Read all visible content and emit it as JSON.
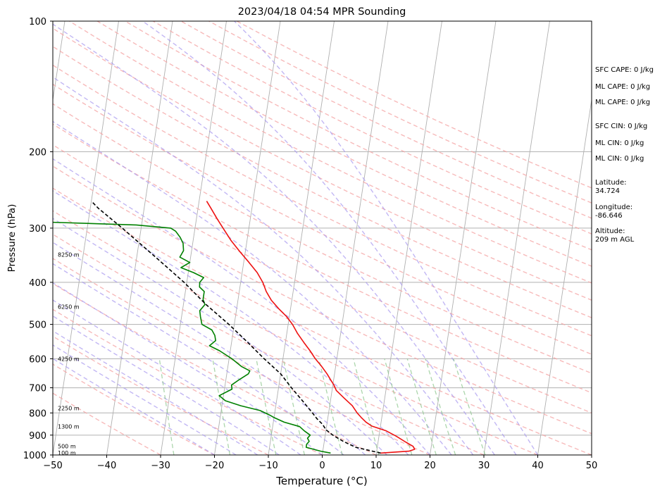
{
  "chart_data": {
    "type": "line",
    "title": "2023/04/18 04:54 MPR Sounding",
    "xlabel": "Temperature (°C)",
    "ylabel": "Pressure (hPa)",
    "xlim": [
      -50,
      50
    ],
    "ylim": [
      1000,
      100
    ],
    "y_scale": "log",
    "x_ticks": [
      "−50",
      "−40",
      "−30",
      "−20",
      "−10",
      "0",
      "10",
      "20",
      "30",
      "40",
      "50"
    ],
    "y_ticks": [
      1000,
      900,
      800,
      700,
      600,
      500,
      400,
      300,
      200,
      100
    ],
    "grid": true,
    "skew": true,
    "series": [
      {
        "color": "#ee1111",
        "points": [
          [
            990,
            10.8
          ],
          [
            980,
            16.0
          ],
          [
            970,
            17.0
          ],
          [
            955,
            16.6
          ],
          [
            935,
            15.2
          ],
          [
            905,
            13.2
          ],
          [
            880,
            11.2
          ],
          [
            858,
            8.4
          ],
          [
            840,
            7.2
          ],
          [
            820,
            6.2
          ],
          [
            800,
            5.3
          ],
          [
            770,
            4.2
          ],
          [
            740,
            2.5
          ],
          [
            710,
            0.8
          ],
          [
            690,
            0.2
          ],
          [
            670,
            -0.6
          ],
          [
            650,
            -1.4
          ],
          [
            625,
            -2.6
          ],
          [
            600,
            -4.0
          ],
          [
            575,
            -5.2
          ],
          [
            550,
            -6.6
          ],
          [
            525,
            -8.0
          ],
          [
            500,
            -9.2
          ],
          [
            480,
            -10.5
          ],
          [
            460,
            -12.2
          ],
          [
            440,
            -13.8
          ],
          [
            420,
            -15.0
          ],
          [
            400,
            -15.9
          ],
          [
            380,
            -17.2
          ],
          [
            360,
            -19.0
          ],
          [
            340,
            -21.0
          ],
          [
            320,
            -23.0
          ],
          [
            300,
            -24.8
          ],
          [
            285,
            -26.2
          ],
          [
            270,
            -27.6
          ],
          [
            260,
            -28.6
          ]
        ]
      },
      {
        "color": "#008000",
        "points": [
          [
            990,
            1.5
          ],
          [
            980,
            -0.4
          ],
          [
            970,
            -1.8
          ],
          [
            960,
            -3.2
          ],
          [
            945,
            -3.2
          ],
          [
            930,
            -2.8
          ],
          [
            915,
            -3.2
          ],
          [
            900,
            -2.8
          ],
          [
            880,
            -4.0
          ],
          [
            860,
            -5.0
          ],
          [
            840,
            -8.0
          ],
          [
            820,
            -10.0
          ],
          [
            810,
            -10.8
          ],
          [
            790,
            -12.8
          ],
          [
            770,
            -16.5
          ],
          [
            750,
            -19.5
          ],
          [
            730,
            -20.8
          ],
          [
            705,
            -18.6
          ],
          [
            690,
            -18.8
          ],
          [
            670,
            -17.5
          ],
          [
            650,
            -16.0
          ],
          [
            640,
            -15.8
          ],
          [
            625,
            -17.5
          ],
          [
            600,
            -19.5
          ],
          [
            575,
            -22.0
          ],
          [
            560,
            -24.0
          ],
          [
            545,
            -23.0
          ],
          [
            530,
            -23.3
          ],
          [
            515,
            -24.0
          ],
          [
            500,
            -26.0
          ],
          [
            480,
            -26.5
          ],
          [
            465,
            -26.8
          ],
          [
            450,
            -26.0
          ],
          [
            438,
            -26.5
          ],
          [
            420,
            -26.5
          ],
          [
            410,
            -27.5
          ],
          [
            400,
            -27.6
          ],
          [
            390,
            -27.0
          ],
          [
            380,
            -29.0
          ],
          [
            370,
            -31.5
          ],
          [
            360,
            -30.0
          ],
          [
            350,
            -32.0
          ],
          [
            338,
            -31.5
          ],
          [
            325,
            -31.8
          ],
          [
            315,
            -32.5
          ],
          [
            305,
            -33.5
          ],
          [
            300,
            -34.5
          ],
          [
            295,
            -41.0
          ],
          [
            290,
            -60.0
          ]
        ]
      },
      {
        "color": "#000000",
        "dashed": true,
        "points": [
          [
            990,
            10.8
          ],
          [
            960,
            6.0
          ],
          [
            930,
            3.5
          ],
          [
            900,
            1.4
          ],
          [
            875,
            0.0
          ],
          [
            850,
            -0.8
          ],
          [
            825,
            -2.0
          ],
          [
            800,
            -3.0
          ],
          [
            750,
            -5.2
          ],
          [
            700,
            -7.6
          ],
          [
            650,
            -10.0
          ],
          [
            600,
            -13.5
          ],
          [
            550,
            -17.0
          ],
          [
            500,
            -21.0
          ],
          [
            450,
            -25.8
          ],
          [
            400,
            -30.5
          ],
          [
            350,
            -36.5
          ],
          [
            300,
            -43.5
          ],
          [
            270,
            -48.5
          ],
          [
            260,
            -50.0
          ]
        ]
      }
    ],
    "height_labels": [
      {
        "p": 345,
        "text": "8250 m"
      },
      {
        "p": 455,
        "text": "6250 m"
      },
      {
        "p": 600,
        "text": "4250 m"
      },
      {
        "p": 780,
        "text": "2250 m"
      },
      {
        "p": 860,
        "text": "1300 m"
      },
      {
        "p": 955,
        "text": "500 m"
      },
      {
        "p": 988,
        "text": "100 m"
      }
    ],
    "dry_adiabat_colors": {
      "dry": "#f4a3a3",
      "moist": "#a898f0",
      "mixing": "#90c890"
    }
  },
  "annotations": [
    {
      "text": "SFC CAPE: 0 J/kg"
    },
    {
      "text": "ML CAPE: 0 J/kg"
    },
    {
      "text": "ML CAPE: 0 J/kg"
    },
    {
      "text": "SFC CIN: 0 J/kg"
    },
    {
      "text": "ML CIN: 0 J/kg"
    },
    {
      "text": "ML CIN: 0 J/kg"
    },
    {
      "text": "Latitude:",
      "text2": "34.724"
    },
    {
      "text": "Longitude:",
      "text2": "-86.646"
    },
    {
      "text": "Altitude:",
      "text2": "209 m AGL"
    }
  ]
}
